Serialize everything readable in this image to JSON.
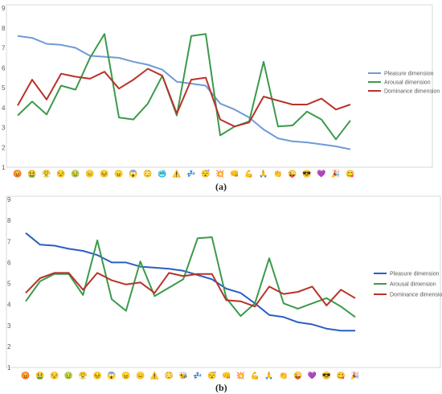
{
  "chart_data": [
    {
      "type": "line",
      "panel_label": "(a)",
      "ylim": [
        1,
        9
      ],
      "yticks": [
        "1",
        "2",
        "3",
        "4",
        "5",
        "6",
        "7",
        "8",
        "9"
      ],
      "grid": false,
      "legend_position": "right",
      "categories": [
        "😡",
        "🤮",
        "😤",
        "😒",
        "🤢",
        "😑",
        "😣",
        "😠",
        "😱",
        "😳",
        "🥶",
        "⚠️",
        "💤",
        "😴",
        "💥",
        "👊",
        "💪",
        "🙏",
        "👏",
        "😜",
        "😎",
        "💜",
        "🎉",
        "😋"
      ],
      "series": [
        {
          "name": "Pleasure dimension",
          "color": "#6f9ad6",
          "values": [
            7.6,
            7.5,
            7.2,
            7.15,
            7.0,
            6.6,
            6.55,
            6.5,
            6.3,
            6.15,
            5.9,
            5.3,
            5.2,
            5.1,
            4.2,
            3.9,
            3.5,
            2.9,
            2.45,
            2.3,
            2.25,
            2.15,
            2.05,
            1.9
          ]
        },
        {
          "name": "Arousal dimension",
          "color": "#3b9a4b",
          "values": [
            3.6,
            4.3,
            3.65,
            5.1,
            4.9,
            6.5,
            7.7,
            3.5,
            3.4,
            4.2,
            5.6,
            3.6,
            7.6,
            7.7,
            2.6,
            3.05,
            3.3,
            6.3,
            3.05,
            3.1,
            3.8,
            3.4,
            2.4,
            3.35
          ]
        },
        {
          "name": "Dominance dimension",
          "color": "#b8322a",
          "values": [
            4.1,
            5.4,
            4.4,
            5.7,
            5.55,
            5.45,
            5.8,
            4.95,
            5.4,
            5.95,
            5.6,
            3.7,
            5.4,
            5.5,
            3.4,
            3.05,
            3.25,
            4.55,
            4.35,
            4.15,
            4.15,
            4.45,
            3.9,
            4.15
          ]
        }
      ]
    },
    {
      "type": "line",
      "panel_label": "(b)",
      "ylim": [
        1,
        9
      ],
      "yticks": [
        "1",
        "2",
        "3",
        "4",
        "5",
        "6",
        "7",
        "8",
        "9"
      ],
      "grid": false,
      "legend_position": "right",
      "categories": [
        "😡",
        "🤮",
        "😒",
        "🤢",
        "😤",
        "😣",
        "😱",
        "😠",
        "😑",
        "⚠️",
        "😳",
        "🐝",
        "💤",
        "😴",
        "👊",
        "💥",
        "💪",
        "🙏",
        "👏",
        "😜",
        "💜",
        "😎",
        "😋",
        "🎉"
      ],
      "series": [
        {
          "name": "Pleasure dimension",
          "color": "#2a5fc4",
          "values": [
            7.4,
            6.85,
            6.8,
            6.65,
            6.55,
            6.35,
            6.0,
            6.0,
            5.8,
            5.75,
            5.7,
            5.6,
            5.4,
            5.2,
            4.75,
            4.55,
            4.05,
            3.5,
            3.4,
            3.15,
            3.05,
            2.85,
            2.75,
            2.75
          ]
        },
        {
          "name": "Arousal dimension",
          "color": "#3b9a4b",
          "values": [
            4.15,
            5.1,
            5.45,
            5.45,
            4.45,
            7.05,
            4.25,
            3.7,
            6.05,
            4.4,
            4.8,
            5.2,
            7.15,
            7.2,
            4.3,
            3.45,
            4.05,
            6.2,
            4.05,
            3.8,
            4.05,
            4.3,
            3.9,
            3.4
          ]
        },
        {
          "name": "Dominance dimension",
          "color": "#b8322a",
          "values": [
            4.55,
            5.25,
            5.5,
            5.5,
            4.7,
            5.5,
            5.15,
            4.95,
            5.05,
            4.55,
            5.5,
            5.35,
            5.45,
            5.45,
            4.2,
            4.15,
            3.9,
            4.85,
            4.5,
            4.6,
            4.85,
            3.95,
            4.7,
            4.3
          ]
        }
      ]
    }
  ]
}
